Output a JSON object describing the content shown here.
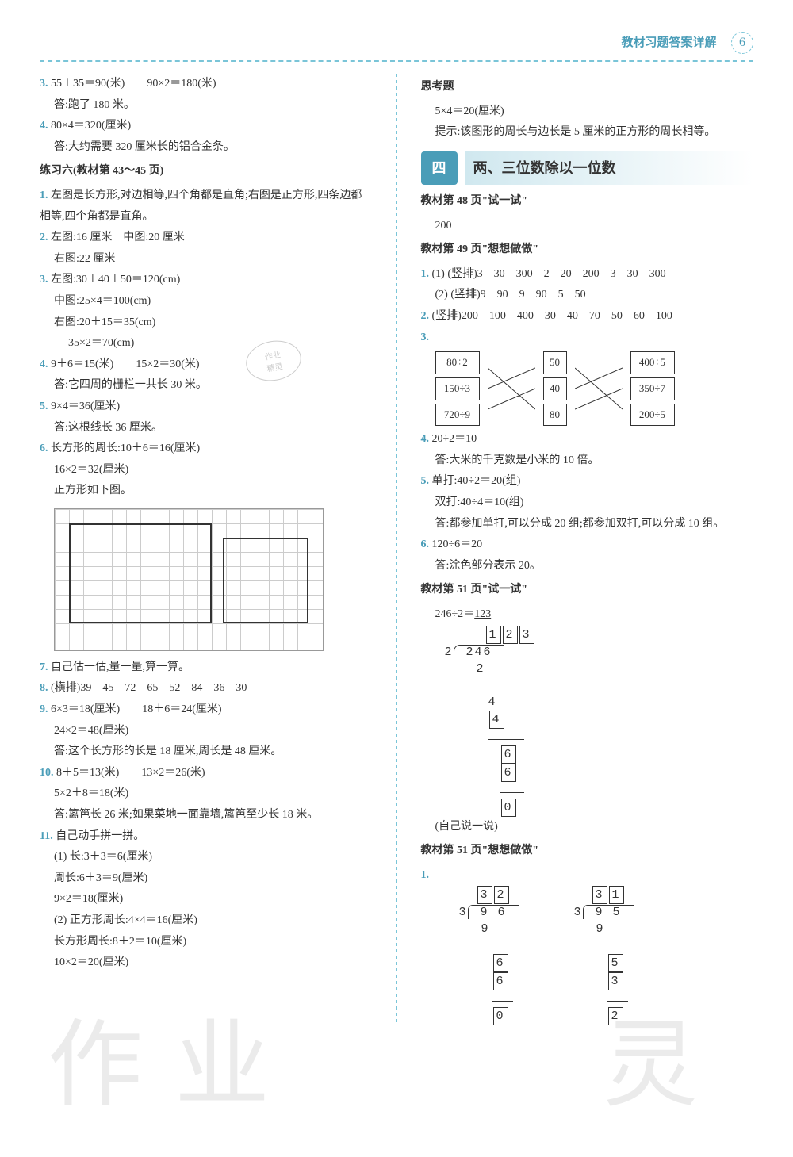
{
  "header": {
    "title": "教材习题答案详解",
    "page": "6"
  },
  "left": {
    "q3": {
      "n": "3.",
      "l1": "55＋35＝90(米)　　90×2＝180(米)",
      "l2": "答:跑了 180 米。"
    },
    "q4": {
      "n": "4.",
      "l1": "80×4＝320(厘米)",
      "l2": "答:大约需要 320 厘米长的铝合金条。"
    },
    "sec6": "练习六(教材第 43～45 页)",
    "p1": {
      "n": "1.",
      "l1": "左图是长方形,对边相等,四个角都是直角;右图是正方形,四条边都相等,四个角都是直角。"
    },
    "p2": {
      "n": "2.",
      "l1": "左图:16 厘米　中图:20 厘米",
      "l2": "右图:22 厘米"
    },
    "p3": {
      "n": "3.",
      "l1": "左图:30＋40＋50＝120(cm)",
      "l2": "中图:25×4＝100(cm)",
      "l3": "右图:20＋15＝35(cm)",
      "l4": "35×2＝70(cm)"
    },
    "p4": {
      "n": "4.",
      "l1": "9＋6＝15(米)　　15×2＝30(米)",
      "l2": "答:它四周的栅栏一共长 30 米。"
    },
    "p5": {
      "n": "5.",
      "l1": "9×4＝36(厘米)",
      "l2": "答:这根线长 36 厘米。"
    },
    "p6": {
      "n": "6.",
      "l1": "长方形的周长:10＋6＝16(厘米)",
      "l2": "16×2＝32(厘米)",
      "l3": "正方形如下图。"
    },
    "p7": {
      "n": "7.",
      "l1": "自己估一估,量一量,算一算。"
    },
    "p8": {
      "n": "8.",
      "l1": "(横排)39　45　72　65　52　84　36　30"
    },
    "p9": {
      "n": "9.",
      "l1": "6×3＝18(厘米)　　18＋6＝24(厘米)",
      "l2": "24×2＝48(厘米)",
      "l3": "答:这个长方形的长是 18 厘米,周长是 48 厘米。"
    },
    "p10": {
      "n": "10.",
      "l1": "8＋5＝13(米)　　13×2＝26(米)",
      "l2": "5×2＋8＝18(米)",
      "l3": "答:篱笆长 26 米;如果菜地一面靠墙,篱笆至少长 18 米。"
    },
    "p11": {
      "n": "11.",
      "l1": "自己动手拼一拼。",
      "l2": "(1) 长:3＋3＝6(厘米)",
      "l3": "周长:6＋3＝9(厘米)",
      "l4": "9×2＝18(厘米)",
      "l5": "(2) 正方形周长:4×4＝16(厘米)",
      "l6": "长方形周长:8＋2＝10(厘米)",
      "l7": "10×2＝20(厘米)"
    }
  },
  "right": {
    "think": {
      "title": "思考题",
      "l1": "5×4＝20(厘米)",
      "l2": "提示:该图形的周长与边长是 5 厘米的正方形的周长相等。"
    },
    "chapter": {
      "num": "四",
      "title": "两、三位数除以一位数"
    },
    "s48": {
      "t": "教材第 48 页\"试一试\"",
      "v": "200"
    },
    "s49": {
      "t": "教材第 49 页\"想想做做\""
    },
    "r1": {
      "n": "1.",
      "l1": "(1) (竖排)3　30　300　2　20　200　3　30　300",
      "l2": "(2) (竖排)9　90　9　90　5　50"
    },
    "r2": {
      "n": "2.",
      "l1": "(竖排)200　100　400　30　40　70　50　60　100"
    },
    "r3": {
      "n": "3."
    },
    "match": {
      "c1": [
        "80÷2",
        "150÷3",
        "720÷9"
      ],
      "c2": [
        "50",
        "40",
        "80"
      ],
      "c3": [
        "400÷5",
        "350÷7",
        "200÷5"
      ],
      "edges1": [
        [
          0,
          2
        ],
        [
          1,
          0
        ],
        [
          2,
          1
        ]
      ],
      "edges2": [
        [
          0,
          2
        ],
        [
          1,
          0
        ],
        [
          2,
          1
        ]
      ],
      "line_color": "#333"
    },
    "r4": {
      "n": "4.",
      "l1": "20÷2＝10",
      "l2": "答:大米的千克数是小米的 10 倍。"
    },
    "r5": {
      "n": "5.",
      "l1": "单打:40÷2＝20(组)",
      "l2": "双打:40÷4＝10(组)",
      "l3": "答:都参加单打,可以分成 20 组;都参加双打,可以分成 10 组。"
    },
    "r6": {
      "n": "6.",
      "l1": "120÷6＝20",
      "l2": "答:涂色部分表示 20。"
    },
    "s51a": {
      "t": "教材第 51 页\"试一试\""
    },
    "ld": {
      "expr": "246÷2＝",
      "ans": "123",
      "divisor": "2",
      "dividend": "246",
      "q1": "1",
      "q2": "2",
      "q3": "3",
      "s1": "2",
      "r1": "4",
      "s2": "4",
      "r2": "6",
      "s3": "6",
      "r3": "0",
      "note": "(自己说一说)"
    },
    "s51b": {
      "t": "教材第 51 页\"想想做做\""
    },
    "r51_1": {
      "n": "1."
    },
    "ld2a": {
      "q": [
        "3",
        "2"
      ],
      "dv": "3",
      "dd": [
        "9",
        "6"
      ],
      "s1": [
        "9"
      ],
      "r1": [
        "6"
      ],
      "s2": [
        "6"
      ],
      "r2": [
        "0"
      ]
    },
    "ld2b": {
      "q": [
        "3",
        "1"
      ],
      "dv": "3",
      "dd": [
        "9",
        "5"
      ],
      "s1": [
        "9"
      ],
      "r1": [
        "5"
      ],
      "s2": [
        "3"
      ],
      "r2": [
        "2"
      ]
    }
  },
  "colors": {
    "accent": "#4a9db8",
    "dash": "#7ac5d8",
    "text": "#333",
    "grid": "#ccc",
    "bg": "#fff"
  },
  "stamp": {
    "l1": "作业",
    "l2": "精灵"
  },
  "watermark": {
    "a": "作业",
    "b": "灵"
  }
}
